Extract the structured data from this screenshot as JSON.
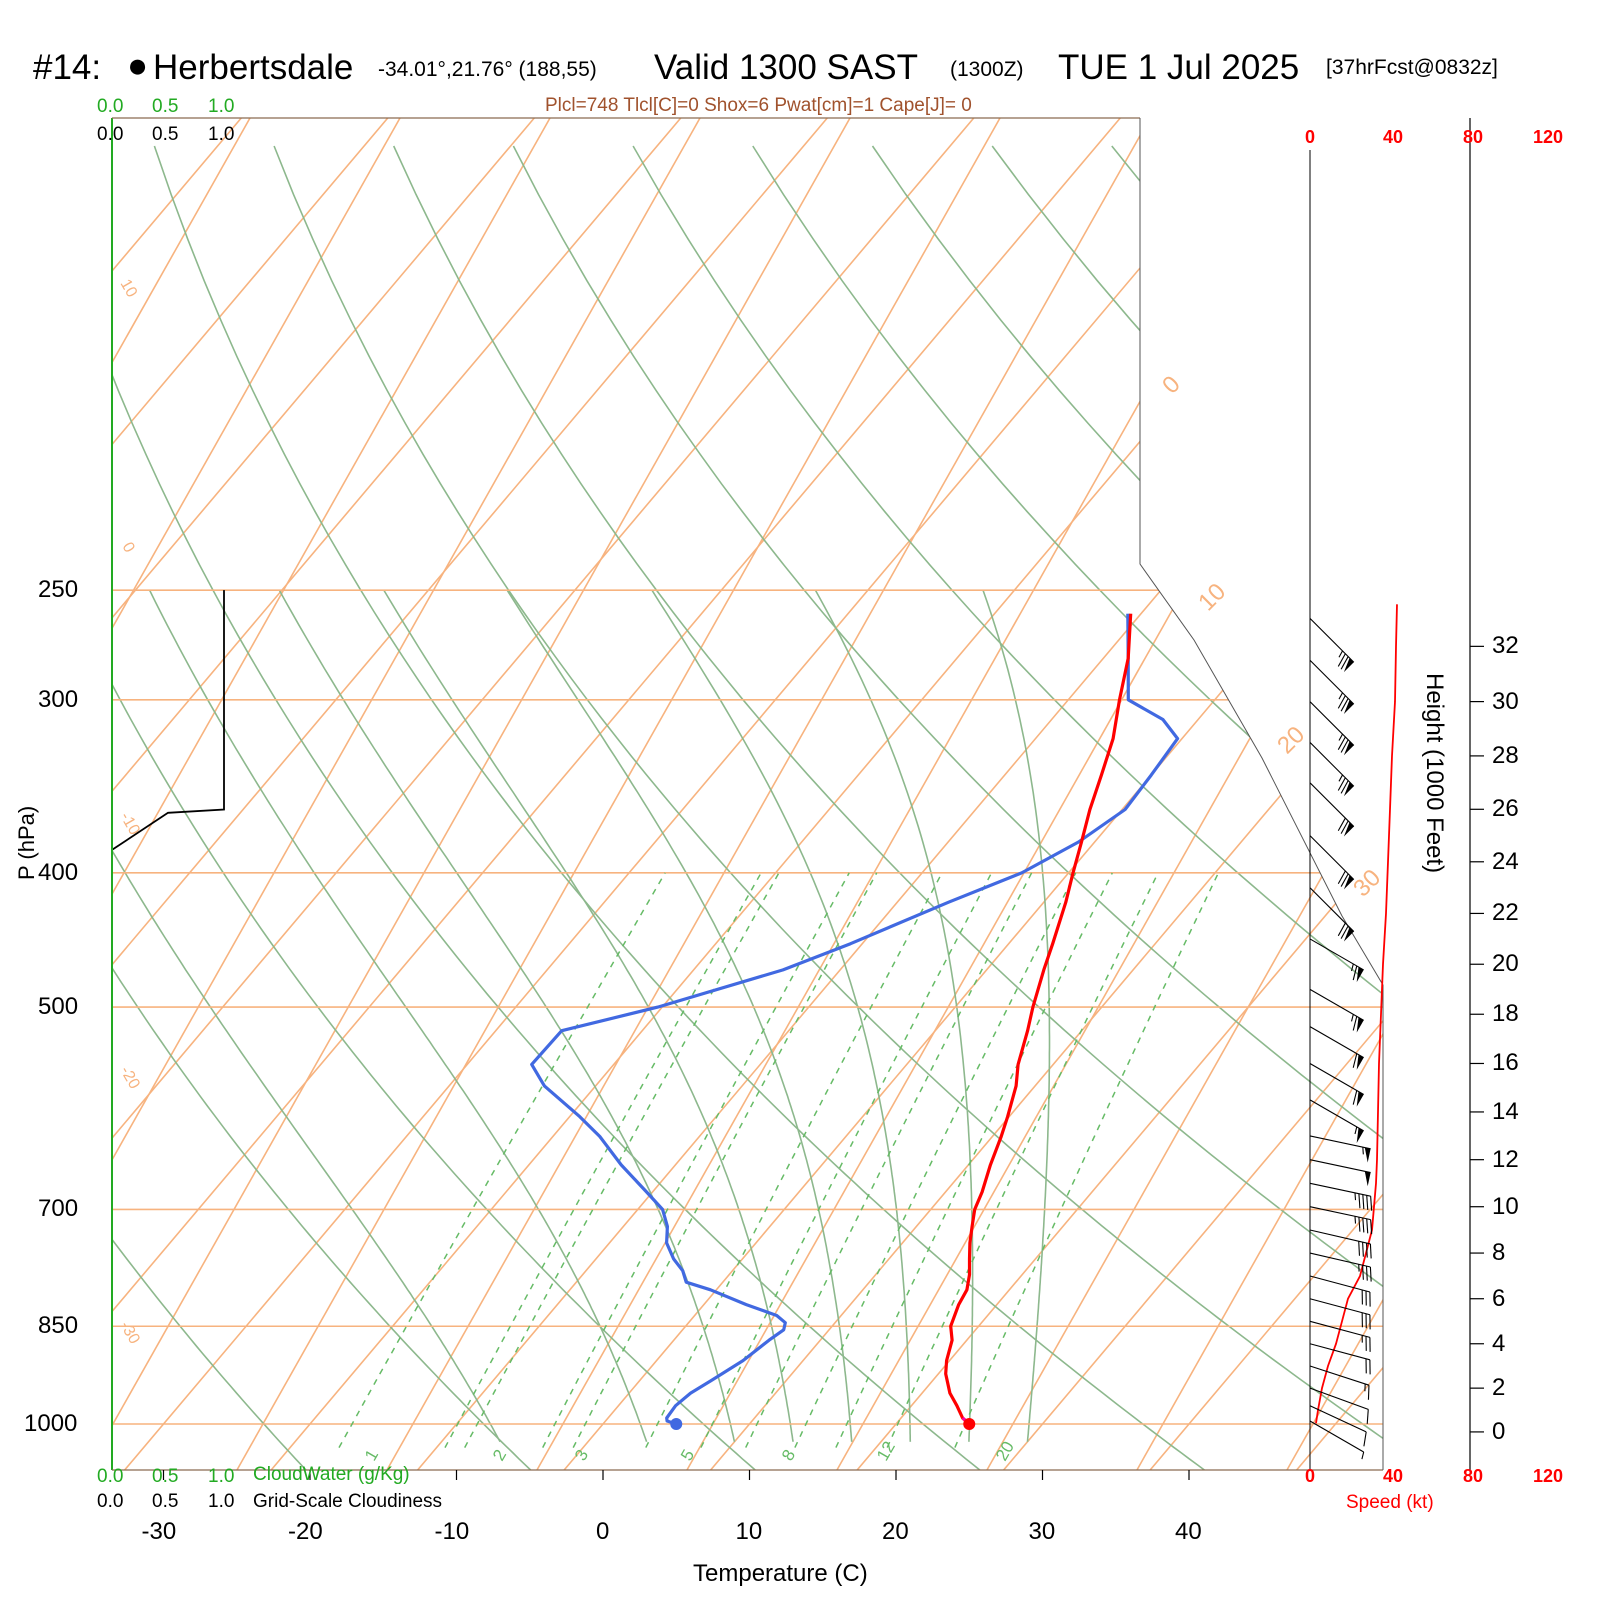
{
  "header": {
    "station_id": "#14:",
    "station_name": "Herbertsdale",
    "coords": "-34.01°,21.76° (188,55)",
    "valid": "Valid 1300 SAST",
    "zulu": "(1300Z)",
    "date": "TUE 1 Jul 2025",
    "forecast": "[37hrFcst@0832z]"
  },
  "indices": "Plcl=748 Tlcl[C]=0 Shox=6 Pwat[cm]=1 Cape[J]= 0",
  "cloud_scale": {
    "ticks": [
      "0.0",
      "0.5",
      "1.0"
    ],
    "cloudwater_label": "CloudWater (g/Kg)",
    "cloudiness_label": "Grid-Scale Cloudiness"
  },
  "speed_scale": {
    "ticks": [
      "0",
      "40",
      "80",
      "120"
    ],
    "label": "Speed (kt)"
  },
  "colors": {
    "isotherm": "#F7B37F",
    "dry_adiabat": "#8DB88D",
    "mixing_ratio": "#66bb66",
    "temperature": "#ff0000",
    "dewpoint": "#4169E1",
    "barb": "#000000",
    "speed": "#ff0000",
    "cloudwater": "#22aa22"
  },
  "chart_data": {
    "type": "skew-t",
    "xlabel": "Temperature (C)",
    "ylabel": "P (hPa)",
    "y2label": "Height (1000 Feet)",
    "x_ticks": [
      -30,
      -20,
      -10,
      0,
      10,
      20,
      30,
      40
    ],
    "pressure_ticks": [
      250,
      300,
      400,
      500,
      700,
      850,
      1000
    ],
    "height_ticks": [
      0,
      2,
      4,
      6,
      8,
      10,
      12,
      14,
      16,
      18,
      20,
      22,
      24,
      26,
      28,
      30,
      32
    ],
    "isotherm_labels": [
      -30,
      -20,
      -10,
      0,
      10,
      20,
      30
    ],
    "mixing_ratio_labels": [
      1,
      2,
      3,
      5,
      8,
      12,
      20
    ],
    "temperature_profile": [
      [
        1000,
        25.0
      ],
      [
        990,
        24.2
      ],
      [
        970,
        23.1
      ],
      [
        950,
        21.9
      ],
      [
        920,
        20.5
      ],
      [
        900,
        19.8
      ],
      [
        870,
        19.0
      ],
      [
        850,
        18.1
      ],
      [
        820,
        17.4
      ],
      [
        800,
        17.1
      ],
      [
        780,
        16.4
      ],
      [
        760,
        15.5
      ],
      [
        740,
        14.6
      ],
      [
        720,
        13.8
      ],
      [
        700,
        13.0
      ],
      [
        680,
        12.5
      ],
      [
        650,
        11.5
      ],
      [
        620,
        10.6
      ],
      [
        600,
        9.9
      ],
      [
        570,
        8.7
      ],
      [
        550,
        7.6
      ],
      [
        520,
        6.3
      ],
      [
        500,
        5.3
      ],
      [
        470,
        3.9
      ],
      [
        450,
        3.0
      ],
      [
        420,
        1.5
      ],
      [
        400,
        0.3
      ],
      [
        380,
        -0.9
      ],
      [
        360,
        -2.2
      ],
      [
        340,
        -3.4
      ],
      [
        320,
        -4.7
      ],
      [
        300,
        -6.5
      ],
      [
        280,
        -8.3
      ],
      [
        260,
        -10.7
      ]
    ],
    "dewpoint_profile": [
      [
        1000,
        5.0
      ],
      [
        995,
        4.2
      ],
      [
        990,
        4.0
      ],
      [
        970,
        3.9
      ],
      [
        950,
        4.2
      ],
      [
        930,
        4.9
      ],
      [
        900,
        5.9
      ],
      [
        870,
        6.5
      ],
      [
        855,
        6.9
      ],
      [
        845,
        6.6
      ],
      [
        835,
        5.6
      ],
      [
        820,
        2.9
      ],
      [
        800,
        -0.4
      ],
      [
        790,
        -2.5
      ],
      [
        775,
        -3.4
      ],
      [
        760,
        -4.7
      ],
      [
        740,
        -6.1
      ],
      [
        720,
        -7.0
      ],
      [
        700,
        -8.3
      ],
      [
        680,
        -10.4
      ],
      [
        650,
        -13.7
      ],
      [
        620,
        -16.8
      ],
      [
        600,
        -19.3
      ],
      [
        570,
        -23.5
      ],
      [
        550,
        -25.6
      ],
      [
        520,
        -25.5
      ],
      [
        500,
        -20.3
      ],
      [
        470,
        -13.9
      ],
      [
        450,
        -10.8
      ],
      [
        420,
        -6.5
      ],
      [
        400,
        -3.2
      ],
      [
        380,
        -1.1
      ],
      [
        360,
        0.2
      ],
      [
        340,
        0.0
      ],
      [
        320,
        -0.3
      ],
      [
        310,
        -2.4
      ],
      [
        300,
        -5.9
      ],
      [
        280,
        -8.3
      ],
      [
        260,
        -10.9
      ]
    ],
    "barb_heights_kft": [
      0.5,
      1.2,
      2.0,
      3.0,
      4.0,
      5.0,
      6.0,
      7.0,
      8.0,
      9.0,
      10.0,
      11.0,
      12.0,
      13.0,
      14.5,
      16.0,
      17.5,
      19.0,
      21.0,
      23.0,
      25.0,
      27.0,
      28.5,
      30.0,
      31.5,
      33.0
    ],
    "barb_speed_kt": [
      8,
      10,
      14,
      18,
      22,
      26,
      30,
      34,
      38,
      42,
      45,
      48,
      52,
      55,
      58,
      60,
      63,
      65,
      68,
      70,
      72,
      74,
      75,
      75,
      75,
      75
    ],
    "barb_dir_deg": [
      300,
      295,
      290,
      288,
      285,
      285,
      285,
      285,
      283,
      283,
      282,
      282,
      282,
      282,
      300,
      300,
      300,
      300,
      300,
      315,
      315,
      315,
      315,
      315,
      315,
      315
    ],
    "speed_profile": [
      [
        0.4,
        3
      ],
      [
        1.0,
        4
      ],
      [
        2.0,
        6
      ],
      [
        3.0,
        9
      ],
      [
        4.0,
        13
      ],
      [
        5.0,
        16
      ],
      [
        6.0,
        19
      ],
      [
        7.0,
        25
      ],
      [
        8.0,
        28
      ],
      [
        9.0,
        31
      ],
      [
        10.0,
        32
      ],
      [
        11.0,
        33
      ],
      [
        12.0,
        33.5
      ],
      [
        14.0,
        34
      ],
      [
        16.0,
        34.5
      ],
      [
        18.0,
        35.5
      ],
      [
        20.0,
        36.5
      ],
      [
        22.0,
        38
      ],
      [
        24.0,
        39
      ],
      [
        26.0,
        40
      ],
      [
        28.0,
        41
      ],
      [
        30.0,
        42.5
      ],
      [
        32.0,
        43
      ],
      [
        33.5,
        43.5
      ]
    ],
    "cloud_water_profile": [
      [
        1000,
        0
      ],
      [
        800,
        0
      ],
      [
        360,
        0
      ],
      [
        250,
        0
      ]
    ],
    "cloudiness_profile": [
      [
        1000,
        0
      ],
      [
        400,
        0
      ],
      [
        385,
        0
      ],
      [
        362,
        0.5
      ],
      [
        360,
        1.0
      ],
      [
        250,
        1.0
      ]
    ]
  }
}
